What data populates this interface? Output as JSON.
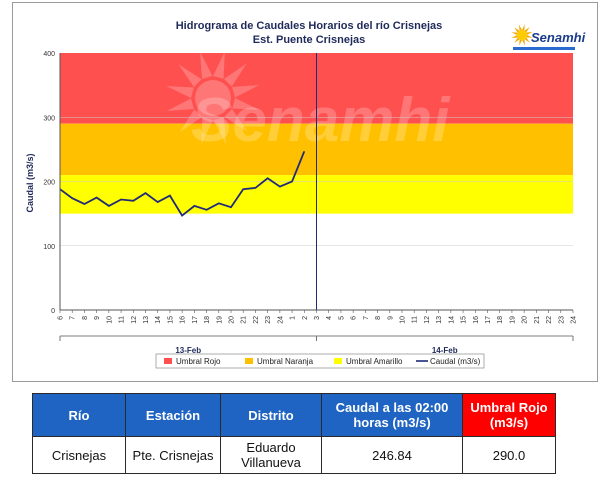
{
  "chart_data": {
    "type": "line",
    "title": "Hidrograma de Caudales Horarios del río Crisnejas",
    "subtitle": "Est. Puente Crisnejas",
    "ylabel": "Caudal  (m3/s)",
    "ylim": [
      0,
      400
    ],
    "y_ticks": [
      "0",
      "100",
      "200",
      "300",
      "400"
    ],
    "x_tick_labels": [
      "6",
      "7",
      "8",
      "9",
      "10",
      "11",
      "12",
      "13",
      "14",
      "15",
      "16",
      "17",
      "18",
      "19",
      "20",
      "21",
      "22",
      "23",
      "24",
      "1",
      "2",
      "3",
      "4",
      "5",
      "6",
      "7",
      "8",
      "9",
      "10",
      "11",
      "12",
      "13",
      "14",
      "15",
      "16",
      "17",
      "18",
      "19",
      "20",
      "21",
      "22",
      "23",
      "24"
    ],
    "day_labels": [
      "13-Feb",
      "14-Feb"
    ],
    "thresholds": [
      {
        "name": "Umbral Rojo",
        "from": 290,
        "to": 400,
        "color": "#ff5050"
      },
      {
        "name": "Umbral Naranja",
        "from": 210,
        "to": 290,
        "color": "#ffc000"
      },
      {
        "name": "Umbral Amarillo",
        "from": 150,
        "to": 210,
        "color": "#ffff00"
      }
    ],
    "series": [
      {
        "name": "Caudal (m3/s)",
        "color": "#1f2a78",
        "values": [
          188,
          174,
          165,
          175,
          162,
          172,
          170,
          182,
          168,
          178,
          147,
          162,
          156,
          166,
          160,
          188,
          190,
          205,
          192,
          200,
          247
        ]
      }
    ],
    "legend_position": "bottom"
  },
  "logo": {
    "text": "Senamhi",
    "watermark": "Senamhi"
  },
  "table": {
    "headers": {
      "rio": "Río",
      "estacion": "Estación",
      "distrito": "Distrito",
      "caudal": "Caudal a las 02:00 horas (m3/s)",
      "umbral": "Umbral Rojo (m3/s)"
    },
    "row": {
      "rio": "Crisnejas",
      "estacion": "Pte. Crisnejas",
      "distrito": "Eduardo Villanueva",
      "caudal": "246.84",
      "umbral": "290.0"
    }
  },
  "colors": {
    "header_blue": "#1f64c2",
    "header_red": "#ff0000",
    "line": "#1f2a78"
  }
}
